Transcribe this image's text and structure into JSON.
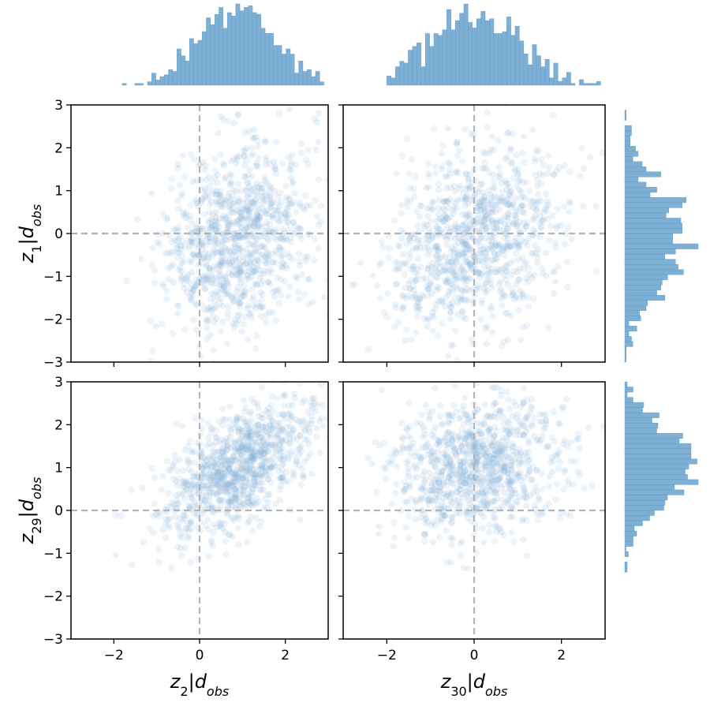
{
  "colors": {
    "scatter": "#7eb0d5",
    "hist": "#7eb0d5",
    "hist_edge": "#5f97c3",
    "reference_line": "#b3b3b3",
    "axis": "#000000"
  },
  "chart_data": {
    "type": "scatter",
    "layout": "2x2 scatter matrix with marginal histograms (top: x variables, right: y variables)",
    "grid": false,
    "legend": "none",
    "reference_lines": {
      "x": 0,
      "y": 0,
      "style": "dashed"
    },
    "tick_values": [
      -3,
      -2,
      -1,
      0,
      1,
      2,
      3
    ],
    "tick_labels": [
      "−3",
      "−2",
      "−1",
      "0",
      "1",
      "2",
      "3"
    ],
    "x_tick_values": [
      -2,
      0,
      2
    ],
    "x_tick_labels": [
      "−2",
      "0",
      "2"
    ],
    "x_variables": [
      {
        "label": {
          "base": "z",
          "index": "2",
          "cond": "d",
          "cond_sub": "obs"
        },
        "mean": 0.9,
        "sd": 0.85
      },
      {
        "label": {
          "base": "z",
          "index": "30",
          "cond": "d",
          "cond_sub": "obs"
        },
        "mean": 0.05,
        "sd": 0.95
      }
    ],
    "y_variables": [
      {
        "label": {
          "base": "z",
          "index": "1",
          "cond": "d",
          "cond_sub": "obs"
        },
        "mean": -0.1,
        "sd": 1.1
      },
      {
        "label": {
          "base": "z",
          "index": "29",
          "cond": "d",
          "cond_sub": "obs"
        },
        "mean": 1.0,
        "sd": 0.8
      }
    ],
    "panels": [
      {
        "x_var": 0,
        "y_var": 0,
        "xlim": [
          -3,
          3
        ],
        "ylim": [
          -3,
          3
        ],
        "correlation": 0.25,
        "n_points": 1000,
        "marker_alpha": 0.15
      },
      {
        "x_var": 1,
        "y_var": 0,
        "xlim": [
          -3,
          3
        ],
        "ylim": [
          -3,
          3
        ],
        "correlation": 0.25,
        "n_points": 1000,
        "marker_alpha": 0.15
      },
      {
        "x_var": 0,
        "y_var": 1,
        "xlim": [
          -3,
          3
        ],
        "ylim": [
          -3,
          3
        ],
        "correlation": 0.55,
        "n_points": 1000,
        "marker_alpha": 0.15
      },
      {
        "x_var": 1,
        "y_var": 1,
        "xlim": [
          -3,
          3
        ],
        "ylim": [
          -3,
          3
        ],
        "correlation": 0.25,
        "n_points": 1000,
        "marker_alpha": 0.15
      }
    ],
    "marginal_histograms": {
      "bins": 50,
      "top_range": [
        -2,
        2.9
      ],
      "right_range": [
        -3,
        3
      ]
    }
  }
}
